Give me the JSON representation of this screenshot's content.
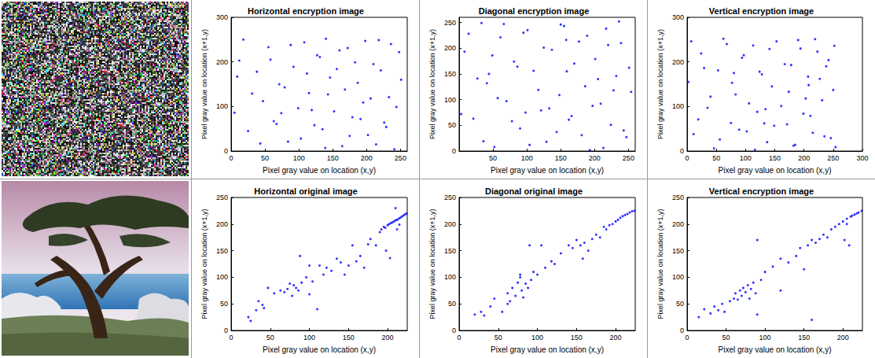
{
  "chart_data": [
    {
      "type": "scatter",
      "title": "Horizontal encryption image",
      "x_label": "Pixel gray value on location (x,y)",
      "y_label": "Pixel gray value on location (x+1,y)",
      "x": [
        12,
        25,
        38,
        47,
        55,
        63,
        71,
        84,
        92,
        99,
        108,
        115,
        123,
        131,
        139,
        146,
        152,
        160,
        168,
        175,
        183,
        191,
        198,
        206,
        214,
        221,
        229,
        236,
        244,
        251,
        5,
        18,
        31,
        43,
        58,
        67,
        79,
        88,
        103,
        112,
        119,
        127,
        135,
        143,
        156,
        164,
        172,
        179,
        187,
        195,
        202,
        210,
        218,
        226,
        233,
        241,
        248,
        9,
        74,
        140
      ],
      "values": [
        203,
        45,
        178,
        112,
        233,
        67,
        150,
        21,
        189,
        96,
        244,
        130,
        58,
        211,
        7,
        165,
        89,
        226,
        138,
        34,
        199,
        72,
        247,
        118,
        15,
        181,
        54,
        240,
        99,
        160,
        86,
        250,
        129,
        17,
        205,
        61,
        143,
        238,
        28,
        174,
        92,
        215,
        49,
        127,
        184,
        11,
        231,
        76,
        153,
        109,
        36,
        195,
        249,
        64,
        121,
        4,
        222,
        167,
        85,
        252
      ],
      "color": "#0000ff",
      "marker": "circle",
      "grid": false,
      "xlim": [
        0,
        260
      ],
      "xticks": [
        0,
        50,
        100,
        150,
        200,
        250
      ],
      "ylim": [
        0,
        300
      ],
      "yticks": [
        0,
        100,
        200,
        300
      ]
    },
    {
      "type": "scatter",
      "title": "Diagonal encryption image",
      "x_label": "Pixel gray value on location (x,y)",
      "y_label": "Pixel gray value on location (x+1,y)",
      "x": [
        3,
        14,
        27,
        36,
        49,
        57,
        66,
        78,
        86,
        95,
        104,
        117,
        125,
        133,
        144,
        150,
        159,
        166,
        177,
        186,
        193,
        201,
        209,
        217,
        224,
        232,
        239,
        247,
        254,
        8,
        21,
        33,
        41,
        52,
        61,
        70,
        81,
        90,
        101,
        110,
        121,
        129,
        137,
        148,
        155,
        162,
        170,
        181,
        189,
        197,
        205,
        213,
        220,
        228,
        236,
        243,
        251,
        44,
        98,
        158
      ],
      "values": [
        72,
        228,
        141,
        19,
        186,
        103,
        247,
        58,
        164,
        230,
        12,
        119,
        201,
        83,
        37,
        246,
        155,
        68,
        213,
        126,
        2,
        179,
        92,
        238,
        51,
        146,
        210,
        27,
        115,
        193,
        63,
        249,
        132,
        8,
        221,
        97,
        174,
        44,
        235,
        156,
        79,
        18,
        197,
        109,
        243,
        61,
        170,
        31,
        224,
        88,
        140,
        6,
        206,
        118,
        252,
        40,
        162,
        150,
        75,
        216
      ],
      "color": "#0000ff",
      "marker": "circle",
      "grid": false,
      "xlim": [
        0,
        260
      ],
      "xticks": [
        50,
        100,
        150,
        200,
        250
      ],
      "ylim": [
        0,
        260
      ],
      "yticks": [
        0,
        50,
        100,
        150,
        200,
        250
      ]
    },
    {
      "type": "scatter",
      "title": "Vertical encryption image",
      "x_label": "Pixel gray value on location (x,y)",
      "y_label": "Pixel gray value on location (x+1,y)",
      "x": [
        2,
        11,
        24,
        35,
        46,
        53,
        62,
        75,
        83,
        94,
        102,
        113,
        120,
        128,
        137,
        145,
        153,
        161,
        171,
        178,
        185,
        194,
        203,
        211,
        219,
        227,
        235,
        242,
        250,
        254,
        7,
        19,
        29,
        40,
        56,
        68,
        77,
        89,
        97,
        106,
        116,
        124,
        134,
        141,
        149,
        167,
        174,
        182,
        190,
        199,
        207,
        215,
        223,
        231,
        238,
        246,
        252,
        80,
        132,
        208
      ],
      "values": [
        155,
        38,
        219,
        97,
        6,
        181,
        252,
        63,
        127,
        209,
        44,
        237,
        88,
        172,
        20,
        145,
        246,
        101,
        60,
        193,
        14,
        230,
        118,
        79,
        251,
        162,
        33,
        204,
        137,
        9,
        246,
        71,
        186,
        122,
        26,
        240,
        153,
        48,
        215,
        107,
        3,
        178,
        94,
        229,
        57,
        195,
        133,
        12,
        249,
        84,
        167,
        41,
        223,
        114,
        190,
        29,
        236,
        175,
        62,
        148
      ],
      "color": "#0000ff",
      "marker": "circle",
      "grid": false,
      "xlim": [
        0,
        300
      ],
      "xticks": [
        0,
        50,
        100,
        150,
        200,
        250,
        300
      ],
      "ylim": [
        0,
        300
      ],
      "yticks": [
        0,
        100,
        200,
        300
      ]
    },
    {
      "type": "scatter",
      "title": "Horizontal original image",
      "x_label": "Pixel gray value on location (x,y)",
      "y_label": "Pixel gray value on location (x+1,y)",
      "x": [
        22,
        25,
        32,
        35,
        40,
        42,
        47,
        55,
        63,
        68,
        72,
        75,
        78,
        80,
        83,
        86,
        88,
        90,
        96,
        100,
        104,
        110,
        113,
        118,
        122,
        128,
        135,
        140,
        145,
        150,
        155,
        160,
        165,
        170,
        175,
        178,
        185,
        190,
        192,
        195,
        197,
        200,
        202,
        204,
        206,
        208,
        210,
        212,
        214,
        216,
        218,
        220,
        222,
        224,
        198,
        203,
        212,
        215,
        100,
        210
      ],
      "values": [
        25,
        18,
        38,
        55,
        48,
        42,
        80,
        70,
        75,
        72,
        78,
        88,
        65,
        85,
        80,
        75,
        140,
        90,
        100,
        68,
        92,
        40,
        122,
        105,
        118,
        112,
        135,
        128,
        105,
        122,
        160,
        130,
        140,
        118,
        162,
        172,
        160,
        185,
        190,
        195,
        193,
        198,
        200,
        202,
        203,
        205,
        207,
        208,
        210,
        212,
        214,
        216,
        218,
        220,
        150,
        136,
        190,
        199,
        122,
        230
      ],
      "color": "#0000ff",
      "marker": "circle",
      "grid": false,
      "xlim": [
        0,
        225
      ],
      "xticks": [
        0,
        50,
        100,
        150,
        200
      ],
      "ylim": [
        0,
        250
      ],
      "yticks": [
        0,
        50,
        100,
        150,
        200,
        250
      ]
    },
    {
      "type": "scatter",
      "title": "Diagonal original image",
      "x_label": "Pixel gray value on location (x,y)",
      "y_label": "Pixel gray value on location (x+1,y)",
      "x": [
        20,
        28,
        32,
        40,
        45,
        55,
        62,
        65,
        68,
        72,
        75,
        78,
        80,
        82,
        85,
        88,
        92,
        95,
        100,
        105,
        110,
        118,
        122,
        130,
        140,
        145,
        150,
        155,
        160,
        165,
        170,
        175,
        180,
        185,
        188,
        192,
        196,
        200,
        203,
        206,
        209,
        212,
        215,
        218,
        221,
        224,
        78,
        90,
        62,
        158
      ],
      "values": [
        30,
        35,
        28,
        45,
        60,
        35,
        70,
        55,
        80,
        65,
        90,
        100,
        75,
        62,
        88,
        80,
        95,
        110,
        105,
        160,
        118,
        130,
        125,
        145,
        160,
        155,
        170,
        160,
        165,
        150,
        172,
        180,
        175,
        195,
        190,
        198,
        200,
        205,
        208,
        212,
        215,
        217,
        219,
        222,
        224,
        225,
        105,
        160,
        50,
        135
      ],
      "color": "#0000ff",
      "marker": "circle",
      "grid": false,
      "xlim": [
        0,
        225
      ],
      "xticks": [
        0,
        50,
        100,
        150,
        200
      ],
      "ylim": [
        0,
        250
      ],
      "yticks": [
        0,
        50,
        100,
        150,
        200,
        250
      ]
    },
    {
      "type": "scatter",
      "title": "Vertical encryption image",
      "x_label": "Pixel gray value on location (x,y)",
      "y_label": "Pixel gray value on location (x+1,y)",
      "x": [
        15,
        22,
        30,
        35,
        40,
        45,
        48,
        55,
        60,
        62,
        65,
        68,
        70,
        72,
        75,
        78,
        80,
        82,
        85,
        88,
        90,
        95,
        100,
        110,
        120,
        130,
        140,
        145,
        150,
        155,
        160,
        165,
        170,
        175,
        180,
        185,
        190,
        195,
        200,
        202,
        205,
        208,
        210,
        212,
        215,
        218,
        220,
        224,
        90,
        120,
        160,
        205
      ],
      "values": [
        25,
        40,
        32,
        45,
        38,
        50,
        35,
        55,
        60,
        70,
        58,
        75,
        65,
        80,
        72,
        85,
        60,
        78,
        90,
        70,
        170,
        95,
        110,
        120,
        135,
        128,
        140,
        155,
        115,
        160,
        170,
        165,
        172,
        180,
        175,
        190,
        195,
        200,
        205,
        170,
        210,
        160,
        214,
        216,
        218,
        220,
        222,
        225,
        30,
        75,
        20,
        200
      ],
      "color": "#0000ff",
      "marker": "circle",
      "grid": false,
      "xlim": [
        0,
        225
      ],
      "xticks": [
        0,
        50,
        100,
        150,
        200
      ],
      "ylim": [
        0,
        250
      ],
      "yticks": [
        0,
        50,
        100,
        150,
        200,
        250
      ]
    }
  ]
}
